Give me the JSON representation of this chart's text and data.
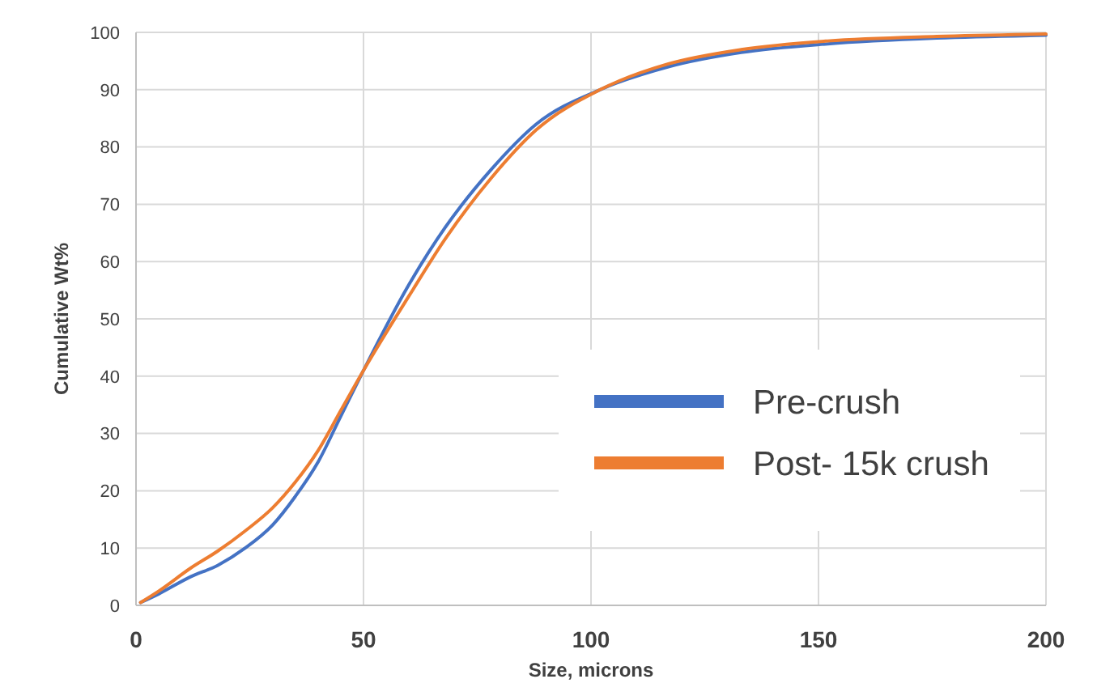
{
  "chart_data": {
    "type": "line",
    "xlabel": "Size, microns",
    "ylabel": "Cumulative Wt%",
    "xlim": [
      0,
      200
    ],
    "xticks": [
      0,
      50,
      100,
      150,
      200
    ],
    "ylim": [
      0,
      100
    ],
    "yticks": [
      0,
      10,
      20,
      30,
      40,
      50,
      60,
      70,
      80,
      90,
      100
    ],
    "grid": true,
    "legend": "right",
    "marker": "none",
    "line_style": "solid",
    "series": [
      {
        "name": "Pre-crush",
        "color": "#4472c4",
        "x": [
          1,
          5,
          12,
          18,
          24,
          30,
          35,
          40,
          45,
          50,
          60,
          68,
          78,
          88,
          102,
          117,
          133,
          152,
          176,
          200
        ],
        "values": [
          0.5,
          2,
          5,
          7,
          10,
          14,
          19,
          25,
          33,
          41,
          56,
          66,
          76,
          84,
          90,
          94,
          96.5,
          98,
          99,
          99.5
        ]
      },
      {
        "name": "Post- 15k crush",
        "color": "#ed7d31",
        "x": [
          1,
          5,
          12,
          18,
          24,
          30,
          35,
          40,
          45,
          50,
          60,
          68,
          78,
          88,
          102,
          117,
          133,
          152,
          176,
          200
        ],
        "values": [
          0.5,
          2.5,
          6.5,
          9.5,
          13,
          17,
          21.5,
          27,
          34,
          41,
          54,
          64,
          74.5,
          83,
          90,
          94.5,
          97,
          98.5,
          99.3,
          99.7
        ]
      }
    ]
  }
}
